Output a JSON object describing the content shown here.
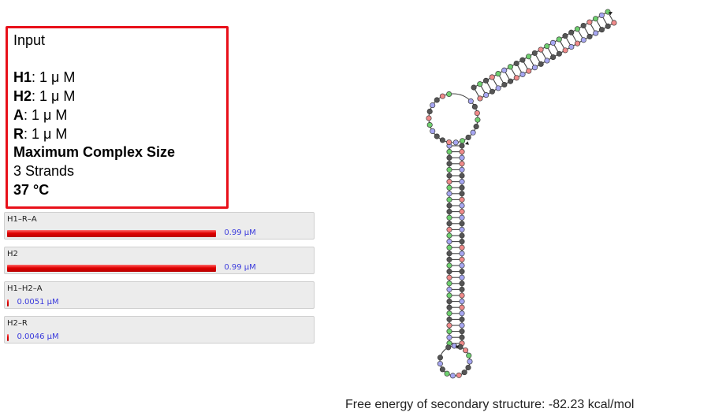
{
  "input": {
    "heading": "Input",
    "strands": [
      {
        "name": "H1",
        "conc": ": 1 μ M"
      },
      {
        "name": "H2",
        "conc": ": 1 μ M"
      },
      {
        "name": "A",
        "conc": ": 1 μ M"
      },
      {
        "name": "R",
        "conc": ": 1 μ M"
      }
    ],
    "max_size_label": "Maximum Complex Size",
    "max_size_value": "3 Strands",
    "temperature": "37 °C"
  },
  "complexes": [
    {
      "name": "H1–R–A",
      "value_label": "0.99 μM",
      "fraction": 0.99
    },
    {
      "name": "H2",
      "value_label": "0.99 μM",
      "fraction": 0.99
    },
    {
      "name": "H1–H2–A",
      "value_label": "0.0051 μM",
      "fraction": 0.0051
    },
    {
      "name": "H2–R",
      "value_label": "0.0046 μM",
      "fraction": 0.0046
    }
  ],
  "structure": {
    "free_energy_label": "Free energy of secondary structure: -82.23 kcal/mol",
    "colors": {
      "A": "#a6a6f2",
      "C": "#6fd06f",
      "G": "#555555",
      "T": "#f08a8a",
      "pair": "#444444",
      "border": "#3a3a3a"
    }
  }
}
